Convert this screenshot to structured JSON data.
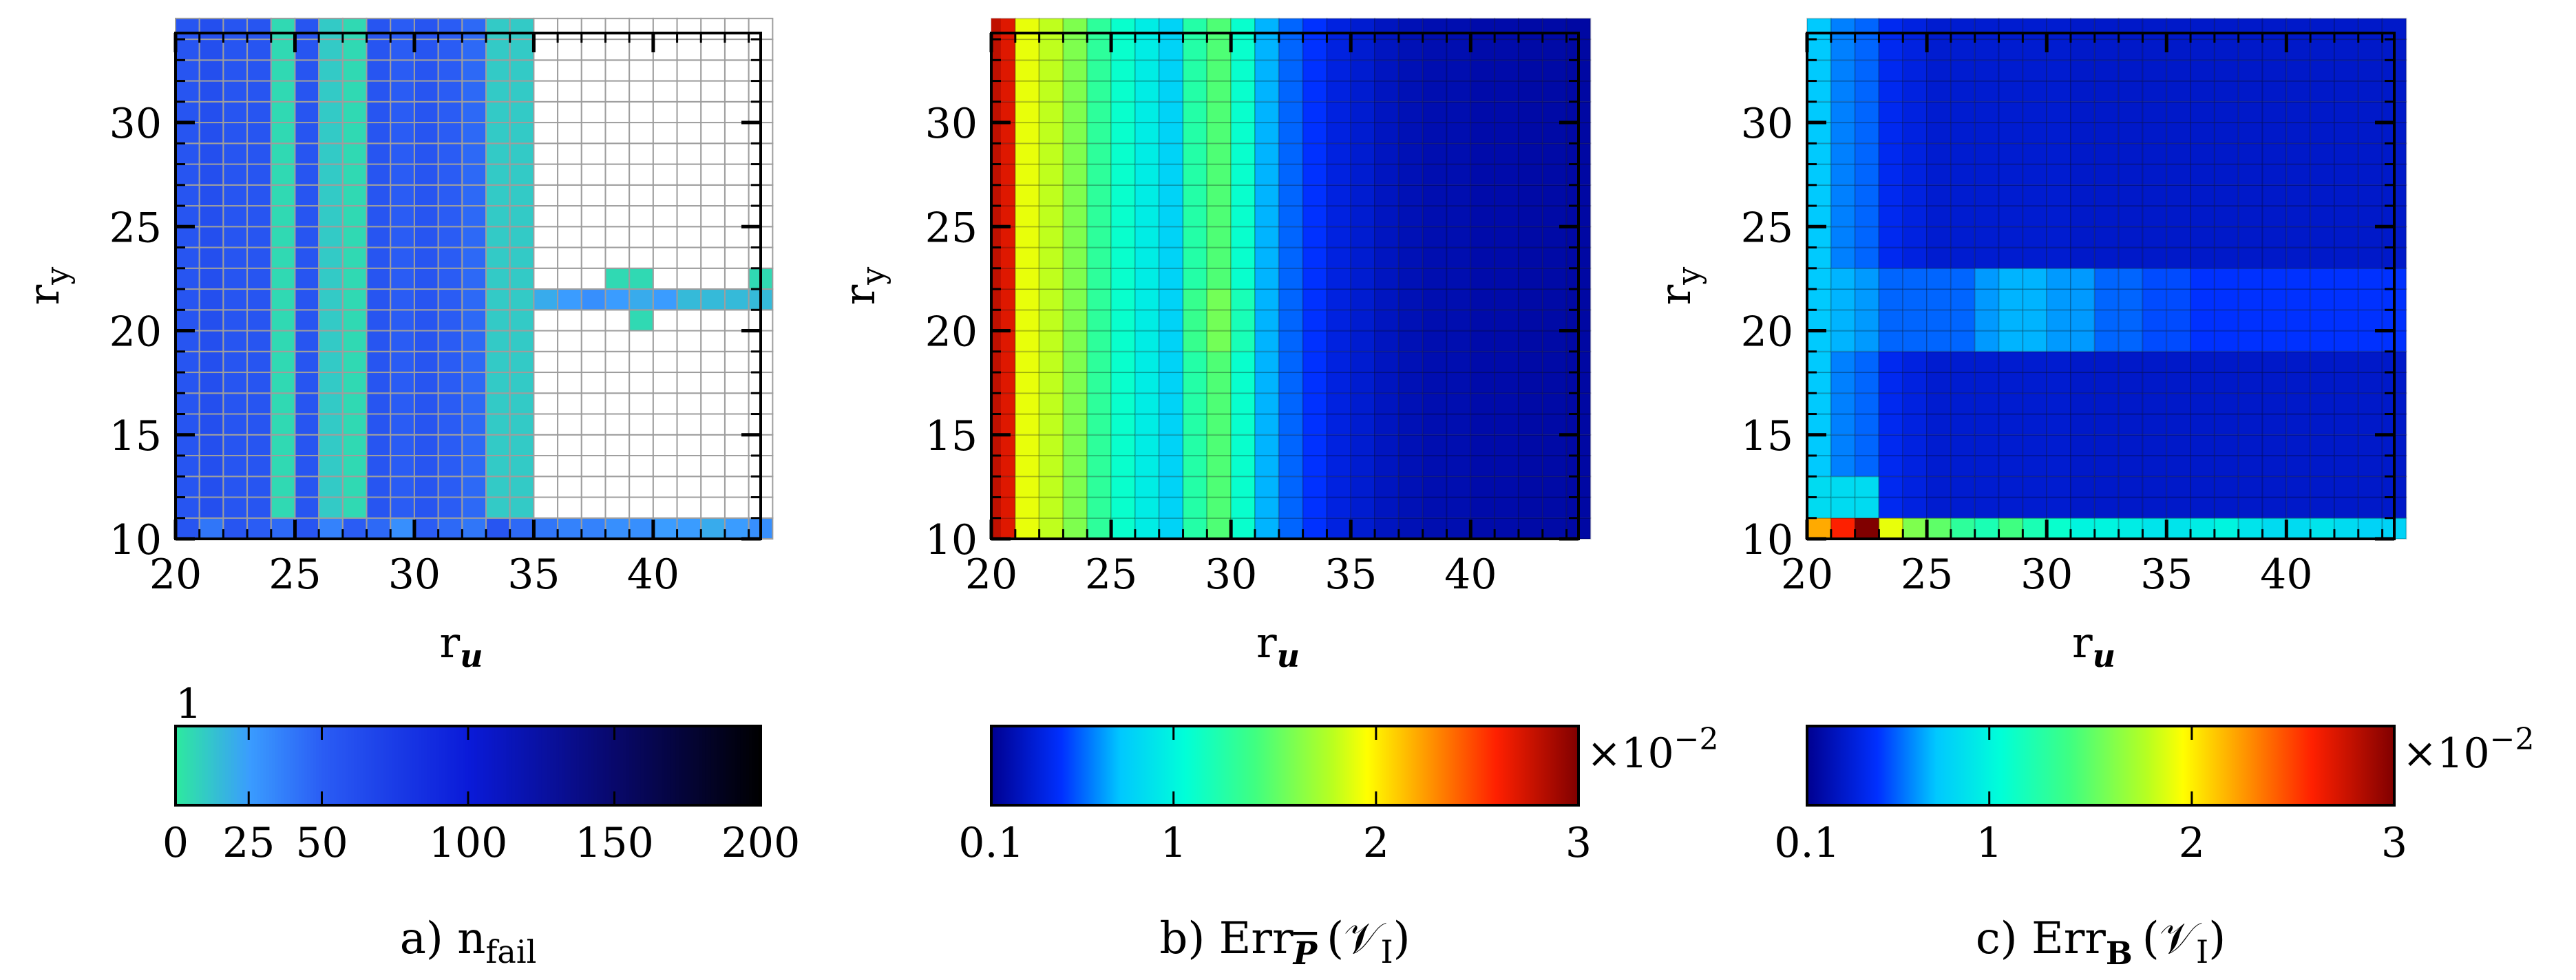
{
  "chart_data": [
    {
      "type": "heatmap",
      "panel": "a",
      "caption_prefix": "a) n",
      "caption_sub": "fail",
      "xlabel": "r",
      "xlabel_sub": "u",
      "ylabel": "r",
      "ylabel_sub": "y",
      "xlim": [
        20,
        44.5
      ],
      "ylim": [
        10,
        34.3
      ],
      "xticks": [
        "20",
        "25",
        "30",
        "35",
        "40"
      ],
      "yticks": [
        "10",
        "15",
        "20",
        "25",
        "30"
      ],
      "grid": true,
      "grid_color": "#9e9e9e",
      "empty_color": "#ffffff",
      "scale": "sequential",
      "colormap": [
        "#2ee8a0",
        "#3a9cff",
        "#2a5cf4",
        "#0a1ad8",
        "#08086a",
        "#000000"
      ],
      "colormap_stops": [
        0,
        25,
        50,
        100,
        150,
        200
      ],
      "value_range": [
        0,
        200
      ],
      "colorbar_ticks": [
        "0",
        "25",
        "50",
        "100",
        "150",
        "200"
      ],
      "colorbar_top_label": "1",
      "columns_min": [
        20,
        21,
        22,
        23,
        24,
        25,
        26,
        27,
        28,
        29,
        30,
        31,
        32,
        33,
        34
      ],
      "column_values": [
        55,
        60,
        55,
        55,
        5,
        55,
        10,
        5,
        55,
        50,
        55,
        50,
        45,
        10,
        10
      ],
      "failed_band_rows": [
        10.5,
        11.5
      ],
      "failed_band_values": [
        55,
        40,
        55,
        50,
        45,
        55,
        35,
        50,
        45,
        30,
        50,
        45,
        40,
        55,
        45,
        40,
        35,
        35,
        30,
        30,
        25,
        25,
        20,
        25
      ],
      "highlight_row_21": [
        20,
        25,
        30,
        25,
        20,
        25,
        15,
        15,
        15,
        15
      ],
      "highlight_row_22": [
        5,
        5
      ]
    },
    {
      "type": "heatmap",
      "panel": "b",
      "caption_prefix": "b) Err",
      "caption_sub": "P",
      "caption_arg": "(𝒱",
      "caption_arg_sub": "I",
      "caption_close": ")",
      "xlabel": "r",
      "xlabel_sub": "u",
      "ylabel": "r",
      "ylabel_sub": "y",
      "xlim": [
        20,
        44.5
      ],
      "ylim": [
        10,
        34.3
      ],
      "xticks": [
        "20",
        "25",
        "30",
        "35",
        "40"
      ],
      "yticks": [
        "10",
        "15",
        "20",
        "25",
        "30"
      ],
      "grid": true,
      "colormap": "jet",
      "value_range": [
        0.1,
        3
      ],
      "colorbar_ticks": [
        "0.1",
        "1",
        "2",
        "3"
      ],
      "colorbar_multiplier": "×10",
      "colorbar_exp": "−2",
      "column_values": [
        2.7,
        1.9,
        1.8,
        1.6,
        1.3,
        1.1,
        0.95,
        0.8,
        1.25,
        1.45,
        1.1,
        0.7,
        0.55,
        0.45,
        0.35,
        0.3,
        0.25,
        0.22,
        0.2,
        0.2,
        0.18,
        0.18,
        0.17,
        0.17,
        0.16
      ]
    },
    {
      "type": "heatmap",
      "panel": "c",
      "caption_prefix": "c) Err",
      "caption_sub": "B",
      "caption_arg": "(𝒱",
      "caption_arg_sub": "I",
      "caption_close": ")",
      "xlabel": "r",
      "xlabel_sub": "u",
      "ylabel": "r",
      "ylabel_sub": "y",
      "xlim": [
        20,
        44.5
      ],
      "ylim": [
        10,
        34.3
      ],
      "xticks": [
        "20",
        "25",
        "30",
        "35",
        "40"
      ],
      "yticks": [
        "10",
        "15",
        "20",
        "25",
        "30"
      ],
      "grid": true,
      "colormap": "jet",
      "value_range": [
        0.1,
        3
      ],
      "colorbar_ticks": [
        "0.1",
        "1",
        "2",
        "3"
      ],
      "colorbar_multiplier": "×10",
      "colorbar_exp": "−2",
      "column_base": [
        0.75,
        0.6,
        0.55,
        0.4,
        0.35,
        0.3,
        0.3,
        0.3,
        0.3,
        0.3,
        0.3,
        0.28,
        0.28,
        0.28,
        0.28,
        0.28,
        0.28,
        0.28,
        0.28,
        0.28,
        0.28,
        0.28,
        0.28,
        0.28,
        0.28
      ],
      "row_band_19_22": [
        0.75,
        0.7,
        0.65,
        0.55,
        0.55,
        0.55,
        0.55,
        0.65,
        0.7,
        0.7,
        0.65,
        0.65,
        0.55,
        0.55,
        0.5,
        0.5,
        0.45,
        0.45,
        0.45,
        0.45,
        0.45,
        0.45,
        0.45,
        0.45,
        0.45
      ],
      "bottom_row_values": [
        2.2,
        2.6,
        3.0,
        1.9,
        1.6,
        1.5,
        1.3,
        1.2,
        1.4,
        1.2,
        1.1,
        1.0,
        1.0,
        0.95,
        0.9,
        0.9,
        0.95,
        1.0,
        0.9,
        0.85,
        0.85,
        0.9,
        0.85,
        0.8,
        0.8
      ]
    }
  ]
}
